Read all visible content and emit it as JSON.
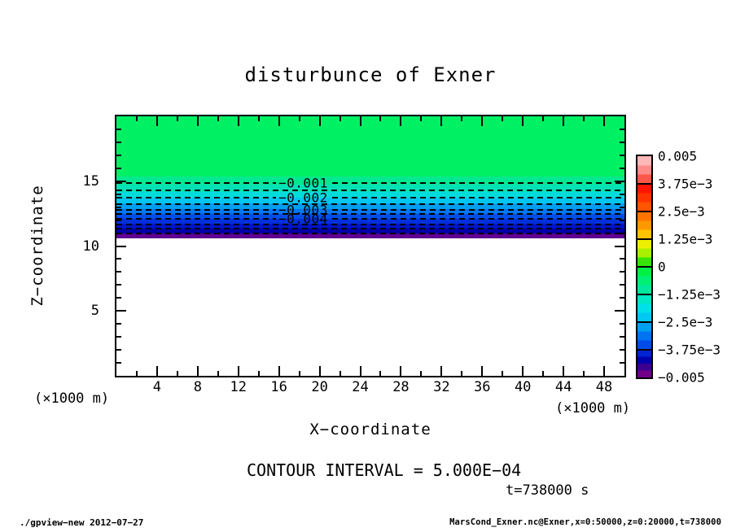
{
  "title": "disturbunce of Exner",
  "axes": {
    "x": {
      "label": "X−coordinate",
      "unit_left": "(×1000 m)",
      "unit_right": "(×1000 m)",
      "min": 0,
      "max": 50,
      "major_ticks": [
        4,
        8,
        12,
        16,
        20,
        24,
        28,
        32,
        36,
        40,
        44,
        48
      ],
      "minor_step": 2
    },
    "z": {
      "label": "Z−coordinate",
      "min": 0,
      "max": 20,
      "major_ticks": [
        5,
        10,
        15
      ],
      "minor_step": 1
    }
  },
  "field": {
    "bands": [
      {
        "z_top": 20.0,
        "z_bot": 15.36,
        "color": "#00F064"
      },
      {
        "z_top": 15.36,
        "z_bot": 14.73,
        "color": "#00E890"
      },
      {
        "z_top": 14.73,
        "z_bot": 14.17,
        "color": "#00E2B6"
      },
      {
        "z_top": 14.17,
        "z_bot": 13.73,
        "color": "#00DCDC"
      },
      {
        "z_top": 13.73,
        "z_bot": 13.29,
        "color": "#00C6F0"
      },
      {
        "z_top": 13.29,
        "z_bot": 12.85,
        "color": "#009EF0"
      },
      {
        "z_top": 12.85,
        "z_bot": 12.48,
        "color": "#0076F0"
      },
      {
        "z_top": 12.48,
        "z_bot": 12.1,
        "color": "#004EE8"
      },
      {
        "z_top": 12.1,
        "z_bot": 11.72,
        "color": "#0030DC"
      },
      {
        "z_top": 11.72,
        "z_bot": 11.35,
        "color": "#0014C8"
      },
      {
        "z_top": 11.35,
        "z_bot": 10.97,
        "color": "#0000A8"
      },
      {
        "z_top": 10.97,
        "z_bot": 10.6,
        "color": "#5E0090"
      }
    ],
    "contours": [
      {
        "level": -0.001,
        "z": 14.86,
        "label": "−0.001"
      },
      {
        "level": -0.0015,
        "z": 14.29,
        "label": null
      },
      {
        "level": -0.002,
        "z": 13.73,
        "label": "−0.002"
      },
      {
        "level": -0.0025,
        "z": 13.26,
        "label": null
      },
      {
        "level": -0.003,
        "z": 12.82,
        "label": "−0.003"
      },
      {
        "level": -0.0035,
        "z": 12.45,
        "label": null
      },
      {
        "level": -0.004,
        "z": 12.07,
        "label": "−0.004"
      },
      {
        "level": -0.0045,
        "z": 11.69,
        "label": null
      },
      {
        "level": -0.005,
        "z": 11.32,
        "label": null
      },
      {
        "level": -0.0055,
        "z": 10.99,
        "label": null
      }
    ]
  },
  "colorbar": {
    "tick_labels": [
      "0.005",
      "3.75e−3",
      "2.5e−3",
      "1.25e−3",
      "0",
      "−1.25e−3",
      "−2.5e−3",
      "−3.75e−3",
      "−0.005"
    ],
    "cells": [
      {
        "colors": [
          "#FFB8B8",
          "#FF8C88",
          "#FF5848"
        ]
      },
      {
        "colors": [
          "#FF1400",
          "#FF3400",
          "#FF5400"
        ]
      },
      {
        "colors": [
          "#FF7400",
          "#FF9800",
          "#FFC400"
        ]
      },
      {
        "colors": [
          "#ECF000",
          "#A8F000",
          "#38E408"
        ]
      },
      {
        "colors": [
          "#00F044",
          "#00F074",
          "#00E89C"
        ]
      },
      {
        "colors": [
          "#00E8C4",
          "#00E0E8",
          "#00C8F0"
        ]
      },
      {
        "colors": [
          "#00A0F0",
          "#0074F0",
          "#004CE8"
        ]
      },
      {
        "colors": [
          "#0024D4",
          "#0000AC",
          "#3C0090",
          "#700088"
        ]
      }
    ]
  },
  "notes": {
    "contour_interval": "CONTOUR INTERVAL = 5.000E−04",
    "time": "t=738000 s"
  },
  "footer": {
    "left": "./gpview−new  2012−07−27",
    "right": "MarsCond_Exner.nc@Exner,x=0:50000,z=0:20000,t=738000"
  },
  "chart_data": {
    "type": "heatmap",
    "title": "disturbunce of Exner",
    "xlabel": "X-coordinate (×1000 m)",
    "ylabel": "Z-coordinate (×1000 m)",
    "xlim": [
      0,
      50
    ],
    "ylim": [
      0,
      20
    ],
    "grid": false,
    "legend_position": "right-colorbar",
    "contour_interval": 0.0005,
    "colorbar_range": [
      -0.005,
      0.005
    ],
    "colorbar_ticks": [
      0.005,
      0.00375,
      0.0025,
      0.00125,
      0,
      -0.00125,
      -0.0025,
      -0.00375,
      -0.005
    ],
    "time_seconds": 738000,
    "structure": "horizontally uniform stratified Exner disturbance; value decreases with depth",
    "vertical_profile": [
      {
        "z": 20.0,
        "value": -0.0003
      },
      {
        "z": 15.36,
        "value": -0.0005
      },
      {
        "z": 14.86,
        "value": -0.001
      },
      {
        "z": 13.73,
        "value": -0.002
      },
      {
        "z": 12.82,
        "value": -0.003
      },
      {
        "z": 12.07,
        "value": -0.004
      },
      {
        "z": 11.32,
        "value": -0.005
      },
      {
        "z": 10.6,
        "value": -0.0056
      }
    ],
    "masked_region": "z < 10.6 shown blank/white (below colorbar minimum -0.005)"
  }
}
